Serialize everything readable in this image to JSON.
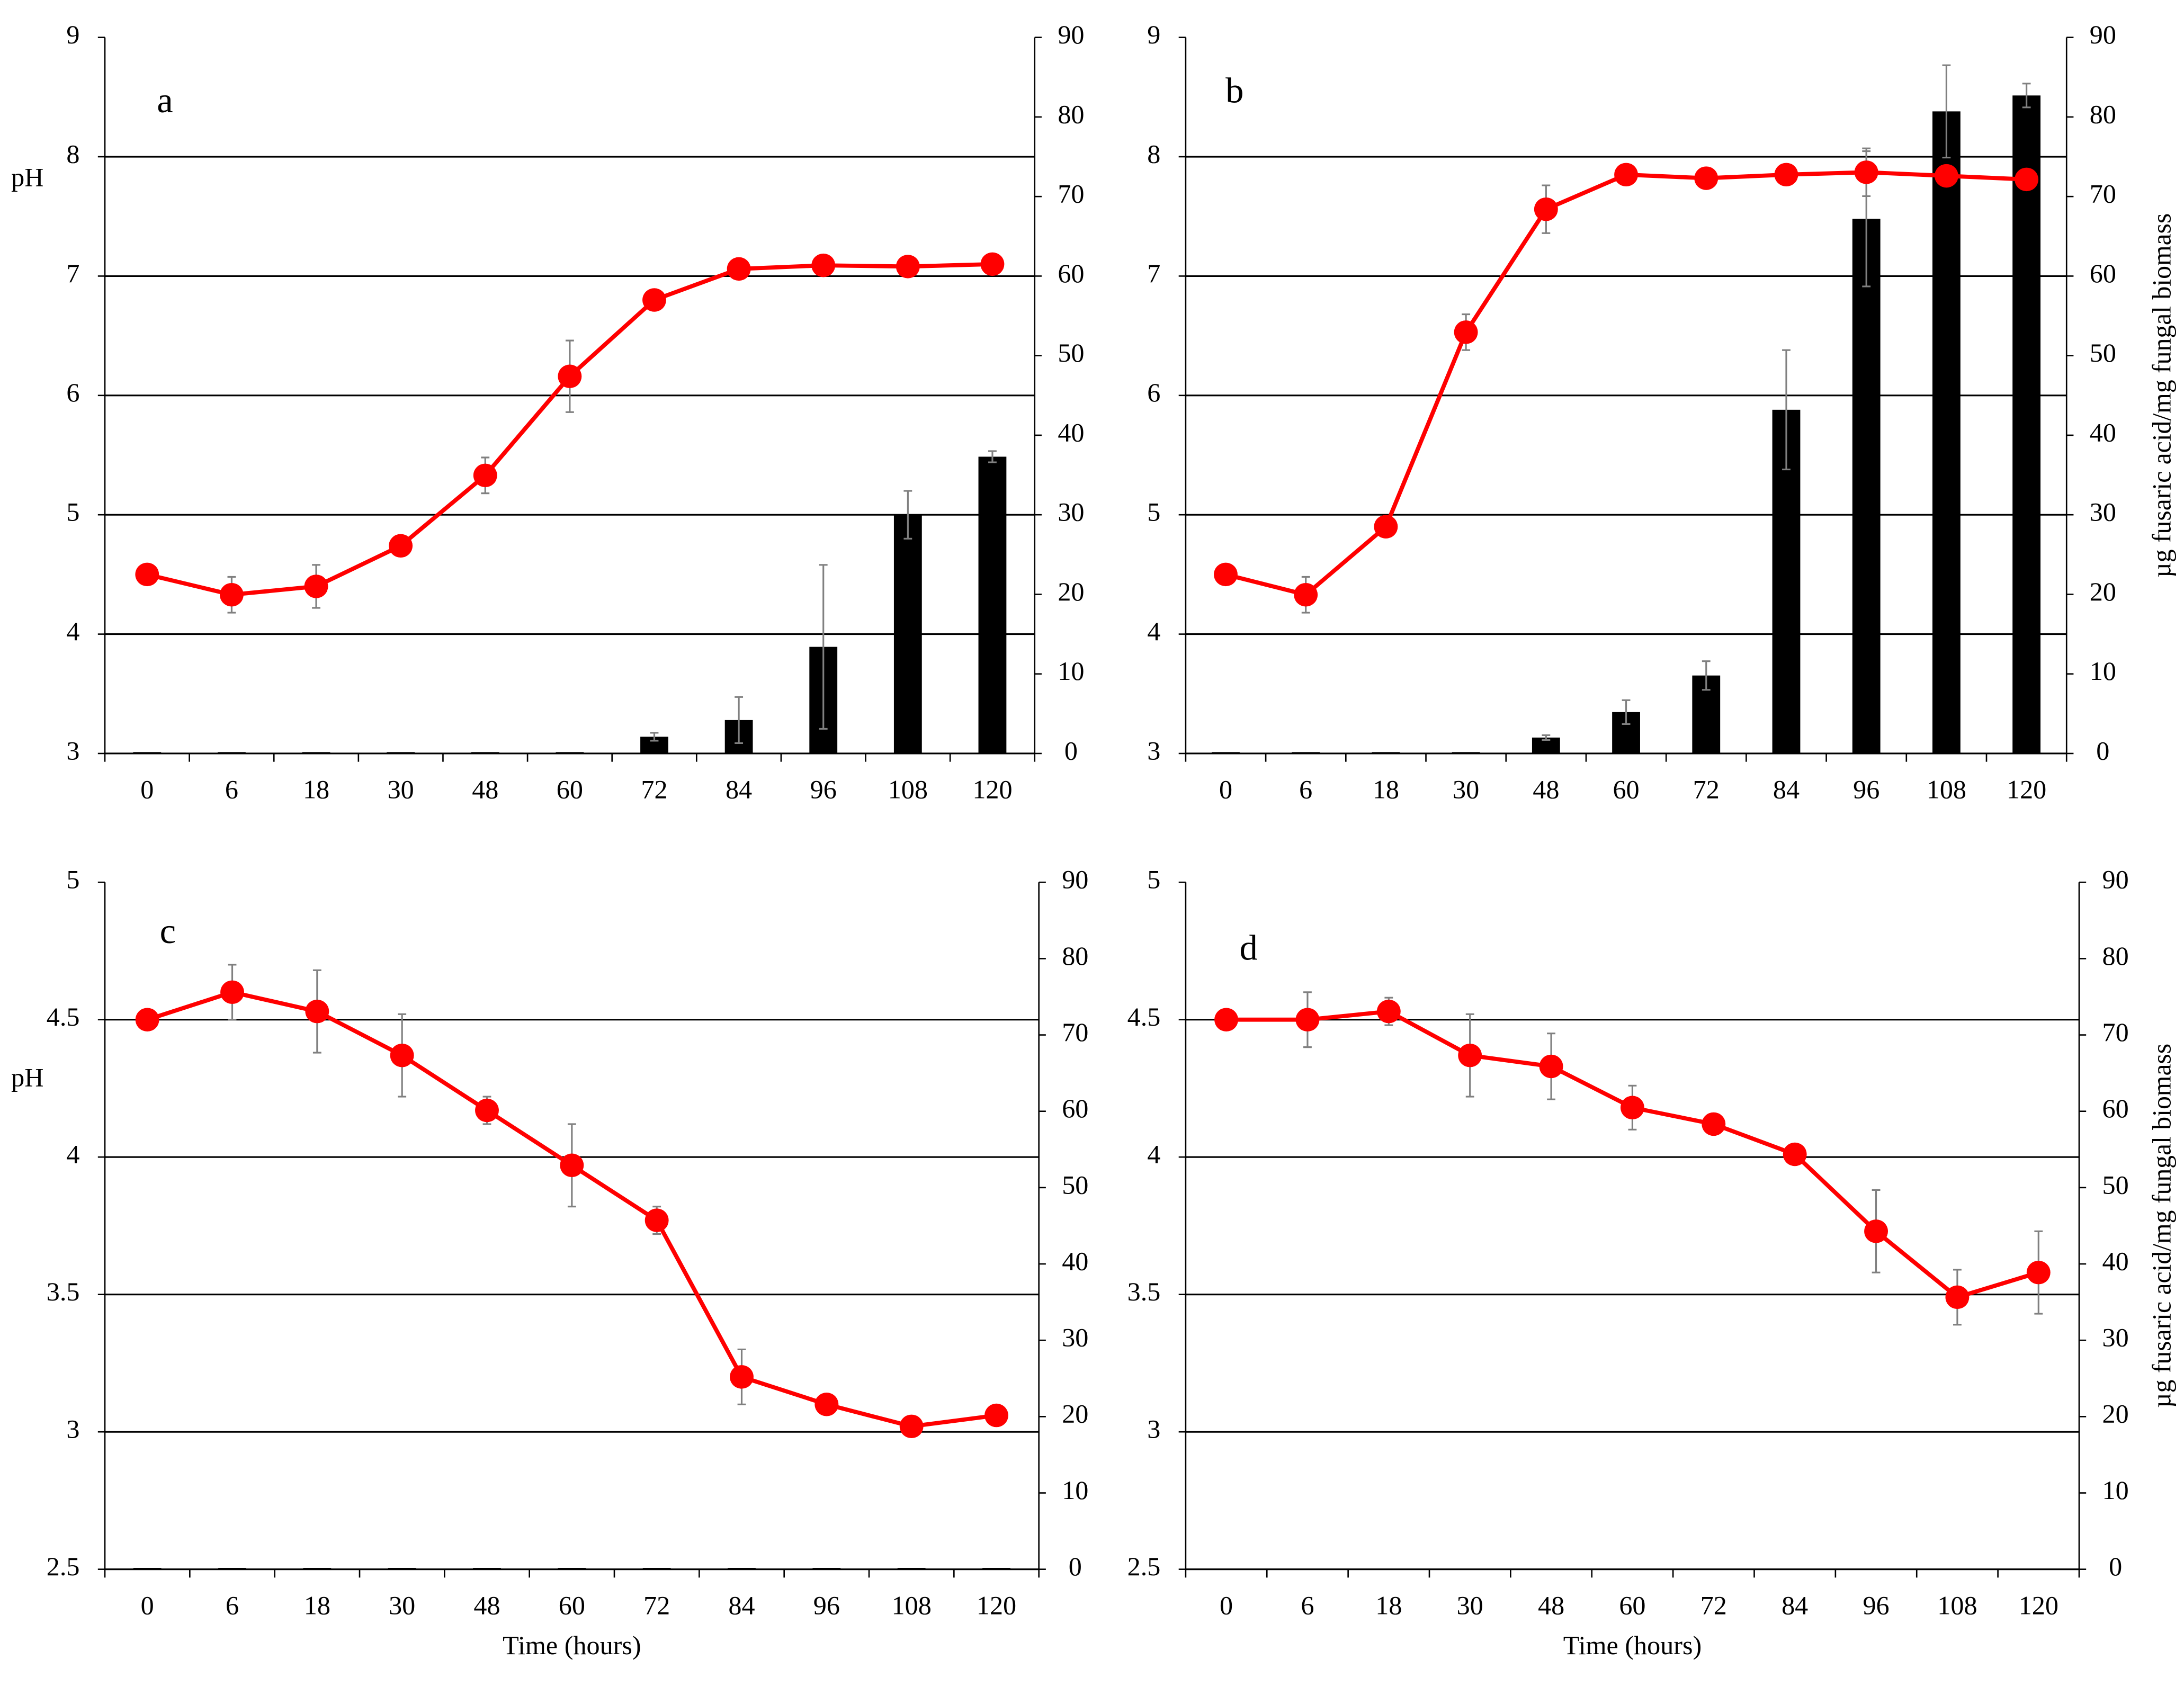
{
  "chart_data": [
    {
      "type": "combo",
      "label": "a",
      "ylabel": "pH",
      "categories": [
        "0",
        "6",
        "18",
        "30",
        "48",
        "60",
        "72",
        "84",
        "96",
        "108",
        "120"
      ],
      "ylim": [
        3,
        9
      ],
      "yticks": [
        3,
        4,
        5,
        6,
        7,
        8,
        9
      ],
      "y2lim": [
        0,
        90
      ],
      "y2ticks": [
        0,
        10,
        20,
        30,
        40,
        50,
        60,
        70,
        80,
        90
      ],
      "grid": true,
      "series": [
        {
          "type": "bar",
          "axis": "y2",
          "color": "#000000",
          "values": [
            0,
            0,
            0,
            0,
            0,
            0,
            2.1,
            4.2,
            13.4,
            30,
            37.3
          ],
          "errors": [
            0,
            0,
            0,
            0,
            0,
            0,
            0.5,
            2.9,
            10.3,
            3,
            0.7
          ]
        },
        {
          "type": "line",
          "color": "#ff0000",
          "values": [
            4.5,
            4.33,
            4.4,
            4.74,
            5.33,
            6.16,
            6.8,
            7.06,
            7.09,
            7.08,
            7.1
          ],
          "errors": [
            0,
            0.15,
            0.18,
            0,
            0.15,
            0.3,
            0,
            0,
            0,
            0,
            0
          ]
        }
      ]
    },
    {
      "type": "combo",
      "label": "b",
      "y2label": "µg fusaric acid/mg fungal biomass",
      "categories": [
        "0",
        "6",
        "18",
        "30",
        "48",
        "60",
        "72",
        "84",
        "96",
        "108",
        "120"
      ],
      "ylim": [
        3,
        9
      ],
      "yticks": [
        3,
        4,
        5,
        6,
        7,
        8,
        9
      ],
      "y2lim": [
        0,
        90
      ],
      "y2ticks": [
        0,
        10,
        20,
        30,
        40,
        50,
        60,
        70,
        80,
        90
      ],
      "grid": true,
      "series": [
        {
          "type": "bar",
          "axis": "y2",
          "color": "#000000",
          "values": [
            0,
            0,
            0,
            0,
            2,
            5.2,
            9.8,
            43.2,
            67.2,
            80.7,
            82.7
          ],
          "errors": [
            0,
            0,
            0,
            0,
            0.3,
            1.5,
            1.8,
            7.5,
            8.5,
            5.8,
            1.5
          ]
        },
        {
          "type": "line",
          "color": "#ff0000",
          "values": [
            4.5,
            4.33,
            4.9,
            6.53,
            7.56,
            7.85,
            7.82,
            7.85,
            7.87,
            7.84,
            7.81
          ],
          "errors": [
            0,
            0.15,
            0,
            0.15,
            0.2,
            0,
            0,
            0,
            0.2,
            0,
            0
          ]
        }
      ]
    },
    {
      "type": "combo",
      "label": "c",
      "ylabel": "pH",
      "xlabel": "Time (hours)",
      "categories": [
        "0",
        "6",
        "18",
        "30",
        "48",
        "60",
        "72",
        "84",
        "96",
        "108",
        "120"
      ],
      "ylim": [
        2.5,
        5
      ],
      "yticks": [
        2.5,
        3,
        3.5,
        4,
        4.5,
        5
      ],
      "y2lim": [
        0,
        90
      ],
      "y2ticks": [
        0,
        10,
        20,
        30,
        40,
        50,
        60,
        70,
        80,
        90
      ],
      "grid": true,
      "series": [
        {
          "type": "bar",
          "axis": "y2",
          "color": "#000000",
          "values": [
            0,
            0,
            0,
            0,
            0,
            0,
            0,
            0,
            0,
            0,
            0
          ],
          "errors": [
            0,
            0,
            0,
            0,
            0,
            0,
            0,
            0,
            0,
            0,
            0
          ]
        },
        {
          "type": "line",
          "color": "#ff0000",
          "values": [
            4.5,
            4.6,
            4.53,
            4.37,
            4.17,
            3.97,
            3.77,
            3.2,
            3.1,
            3.02,
            3.06
          ],
          "errors": [
            0,
            0.1,
            0.15,
            0.15,
            0.05,
            0.15,
            0.05,
            0.1,
            0,
            0,
            0
          ]
        }
      ]
    },
    {
      "type": "combo",
      "label": "d",
      "xlabel": "Time (hours)",
      "y2label": "µg fusaric acid/mg fungal biomass",
      "categories": [
        "0",
        "6",
        "18",
        "30",
        "48",
        "60",
        "72",
        "84",
        "96",
        "108",
        "120"
      ],
      "ylim": [
        2.5,
        5
      ],
      "yticks": [
        2.5,
        3,
        3.5,
        4,
        4.5,
        5
      ],
      "y2lim": [
        0,
        90
      ],
      "y2ticks": [
        0,
        10,
        20,
        30,
        40,
        50,
        60,
        70,
        80,
        90
      ],
      "grid": true,
      "series": [
        {
          "type": "line",
          "color": "#ff0000",
          "values": [
            4.5,
            4.5,
            4.53,
            4.37,
            4.33,
            4.18,
            4.12,
            4.01,
            3.73,
            3.49,
            3.58
          ],
          "errors": [
            0,
            0.1,
            0.05,
            0.15,
            0.12,
            0.08,
            0.03,
            0,
            0.15,
            0.1,
            0.15
          ]
        }
      ]
    }
  ]
}
